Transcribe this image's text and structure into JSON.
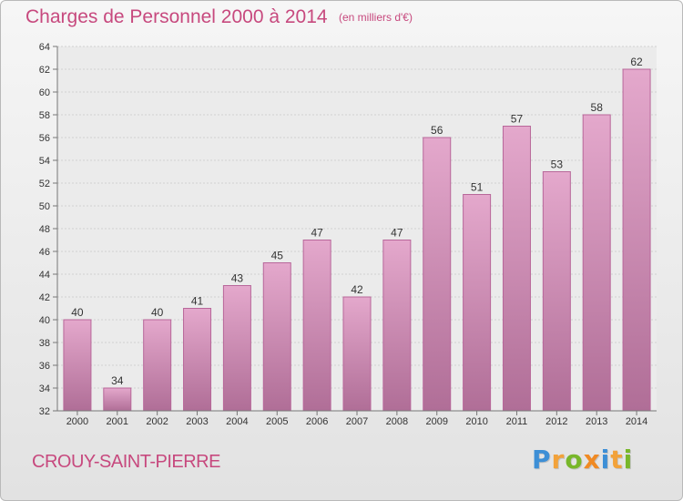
{
  "title": "Charges de Personnel 2000 à 2014",
  "subtitle": "(en milliers d'€)",
  "city": "CROUY-SAINT-PIERRE",
  "logo": {
    "letters": [
      "P",
      "r",
      "o",
      "x",
      "i",
      "t",
      "i"
    ],
    "colors": [
      "#3d8fd6",
      "#f2a23a",
      "#78b72a",
      "#f08a24",
      "#3d8fd6",
      "#f2a23a",
      "#78b72a"
    ]
  },
  "colors": {
    "bar_top": "#e4a8cc",
    "bar_bottom": "#b06e97",
    "bar_edge": "#b8679a",
    "title": "#c7497e"
  },
  "chart_data": {
    "type": "bar",
    "title": "Charges de Personnel 2000 à 2014",
    "subtitle": "(en milliers d'€)",
    "xlabel": "",
    "ylabel": "",
    "categories": [
      "2000",
      "2001",
      "2002",
      "2003",
      "2004",
      "2005",
      "2006",
      "2007",
      "2008",
      "2009",
      "2010",
      "2011",
      "2012",
      "2013",
      "2014"
    ],
    "values": [
      40,
      34,
      40,
      41,
      43,
      45,
      47,
      42,
      47,
      56,
      51,
      57,
      53,
      58,
      62
    ],
    "ylim": [
      32,
      64
    ],
    "yticks": [
      32,
      34,
      36,
      38,
      40,
      42,
      44,
      46,
      48,
      50,
      52,
      54,
      56,
      58,
      60,
      62,
      64
    ],
    "grid": true,
    "data_labels": true
  }
}
